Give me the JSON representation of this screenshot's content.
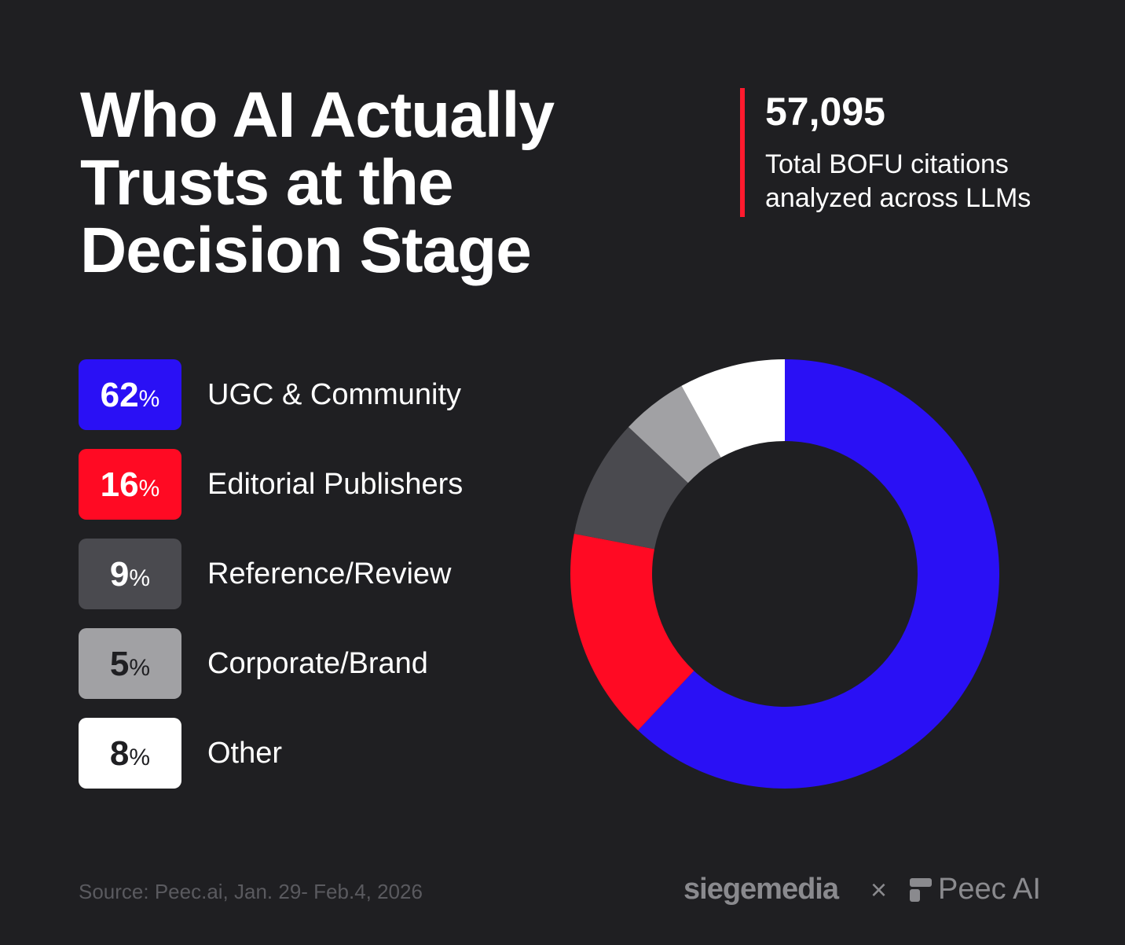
{
  "header": {
    "title_lines": [
      "Who AI Actually",
      "Trusts at the",
      "Decision Stage"
    ],
    "stat_number": "57,095",
    "stat_caption_lines": [
      "Total BOFU citations",
      "analyzed across LLMs"
    ],
    "accent_color": "#ff1a2e"
  },
  "legend": [
    {
      "value": "62",
      "sign": "%",
      "label": "UGC & Community",
      "color": "#2a10f5",
      "text_color": "#ffffff"
    },
    {
      "value": "16",
      "sign": "%",
      "label": "Editorial Publishers",
      "color": "#ff0a23",
      "text_color": "#ffffff"
    },
    {
      "value": "9",
      "sign": "%",
      "label": "Reference/Review",
      "color": "#4a4a4f",
      "text_color": "#ffffff"
    },
    {
      "value": "5",
      "sign": "%",
      "label": "Corporate/Brand",
      "color": "#a1a1a4",
      "text_color": "#1f1f22"
    },
    {
      "value": "8",
      "sign": "%",
      "label": "Other",
      "color": "#ffffff",
      "text_color": "#1f1f22"
    }
  ],
  "chart_data": {
    "type": "pie",
    "variant": "donut",
    "title": "Who AI Actually Trusts at the Decision Stage",
    "categories": [
      "UGC & Community",
      "Editorial Publishers",
      "Reference/Review",
      "Corporate/Brand",
      "Other"
    ],
    "values": [
      62,
      16,
      9,
      5,
      8
    ],
    "unit": "%",
    "colors": [
      "#2a10f5",
      "#ff0a23",
      "#4a4a4f",
      "#a1a1a4",
      "#ffffff"
    ],
    "start": "12 o'clock",
    "direction": "clockwise",
    "legend_placement": "left"
  },
  "footer": {
    "source": "Source: Peec.ai, Jan. 29- Feb.4, 2026",
    "brand_left": "siegemedia",
    "separator": "×",
    "brand_right": "Peec AI"
  }
}
